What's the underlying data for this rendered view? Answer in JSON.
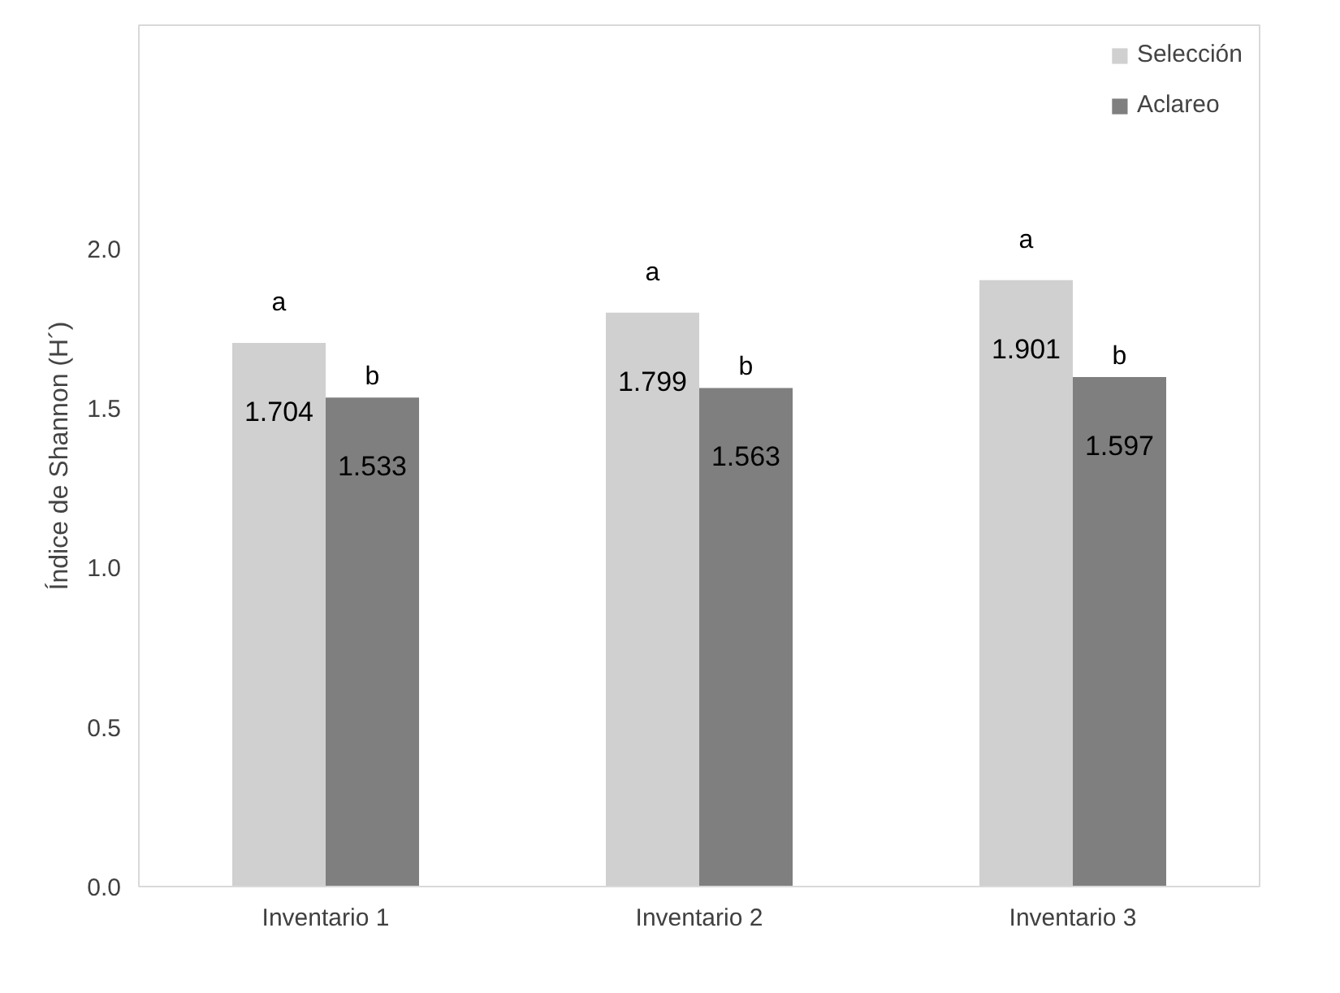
{
  "chart_data": {
    "type": "bar",
    "ylabel": "Índice de Shannon (H´)",
    "categories": [
      "Inventario 1",
      "Inventario 2",
      "Inventario 3"
    ],
    "series": [
      {
        "name": "Selección",
        "color": "#d0d0d0",
        "values": [
          1.704,
          1.799,
          1.901
        ]
      },
      {
        "name": "Aclareo",
        "color": "#7f7f7f",
        "values": [
          1.533,
          1.563,
          1.597
        ]
      }
    ],
    "ylim": [
      0,
      2.7
    ],
    "yticks": [
      {
        "value": 0,
        "label": "0.0"
      },
      {
        "value": 0.5,
        "label": "0.5"
      },
      {
        "value": 1,
        "label": "1.0"
      },
      {
        "value": 1.5,
        "label": "1.5"
      },
      {
        "value": 2,
        "label": "2.0"
      }
    ],
    "data_labels": true,
    "grid": false,
    "legend": "top right",
    "annotations": [
      "a",
      "b",
      "a",
      "b",
      "a",
      "b"
    ]
  }
}
